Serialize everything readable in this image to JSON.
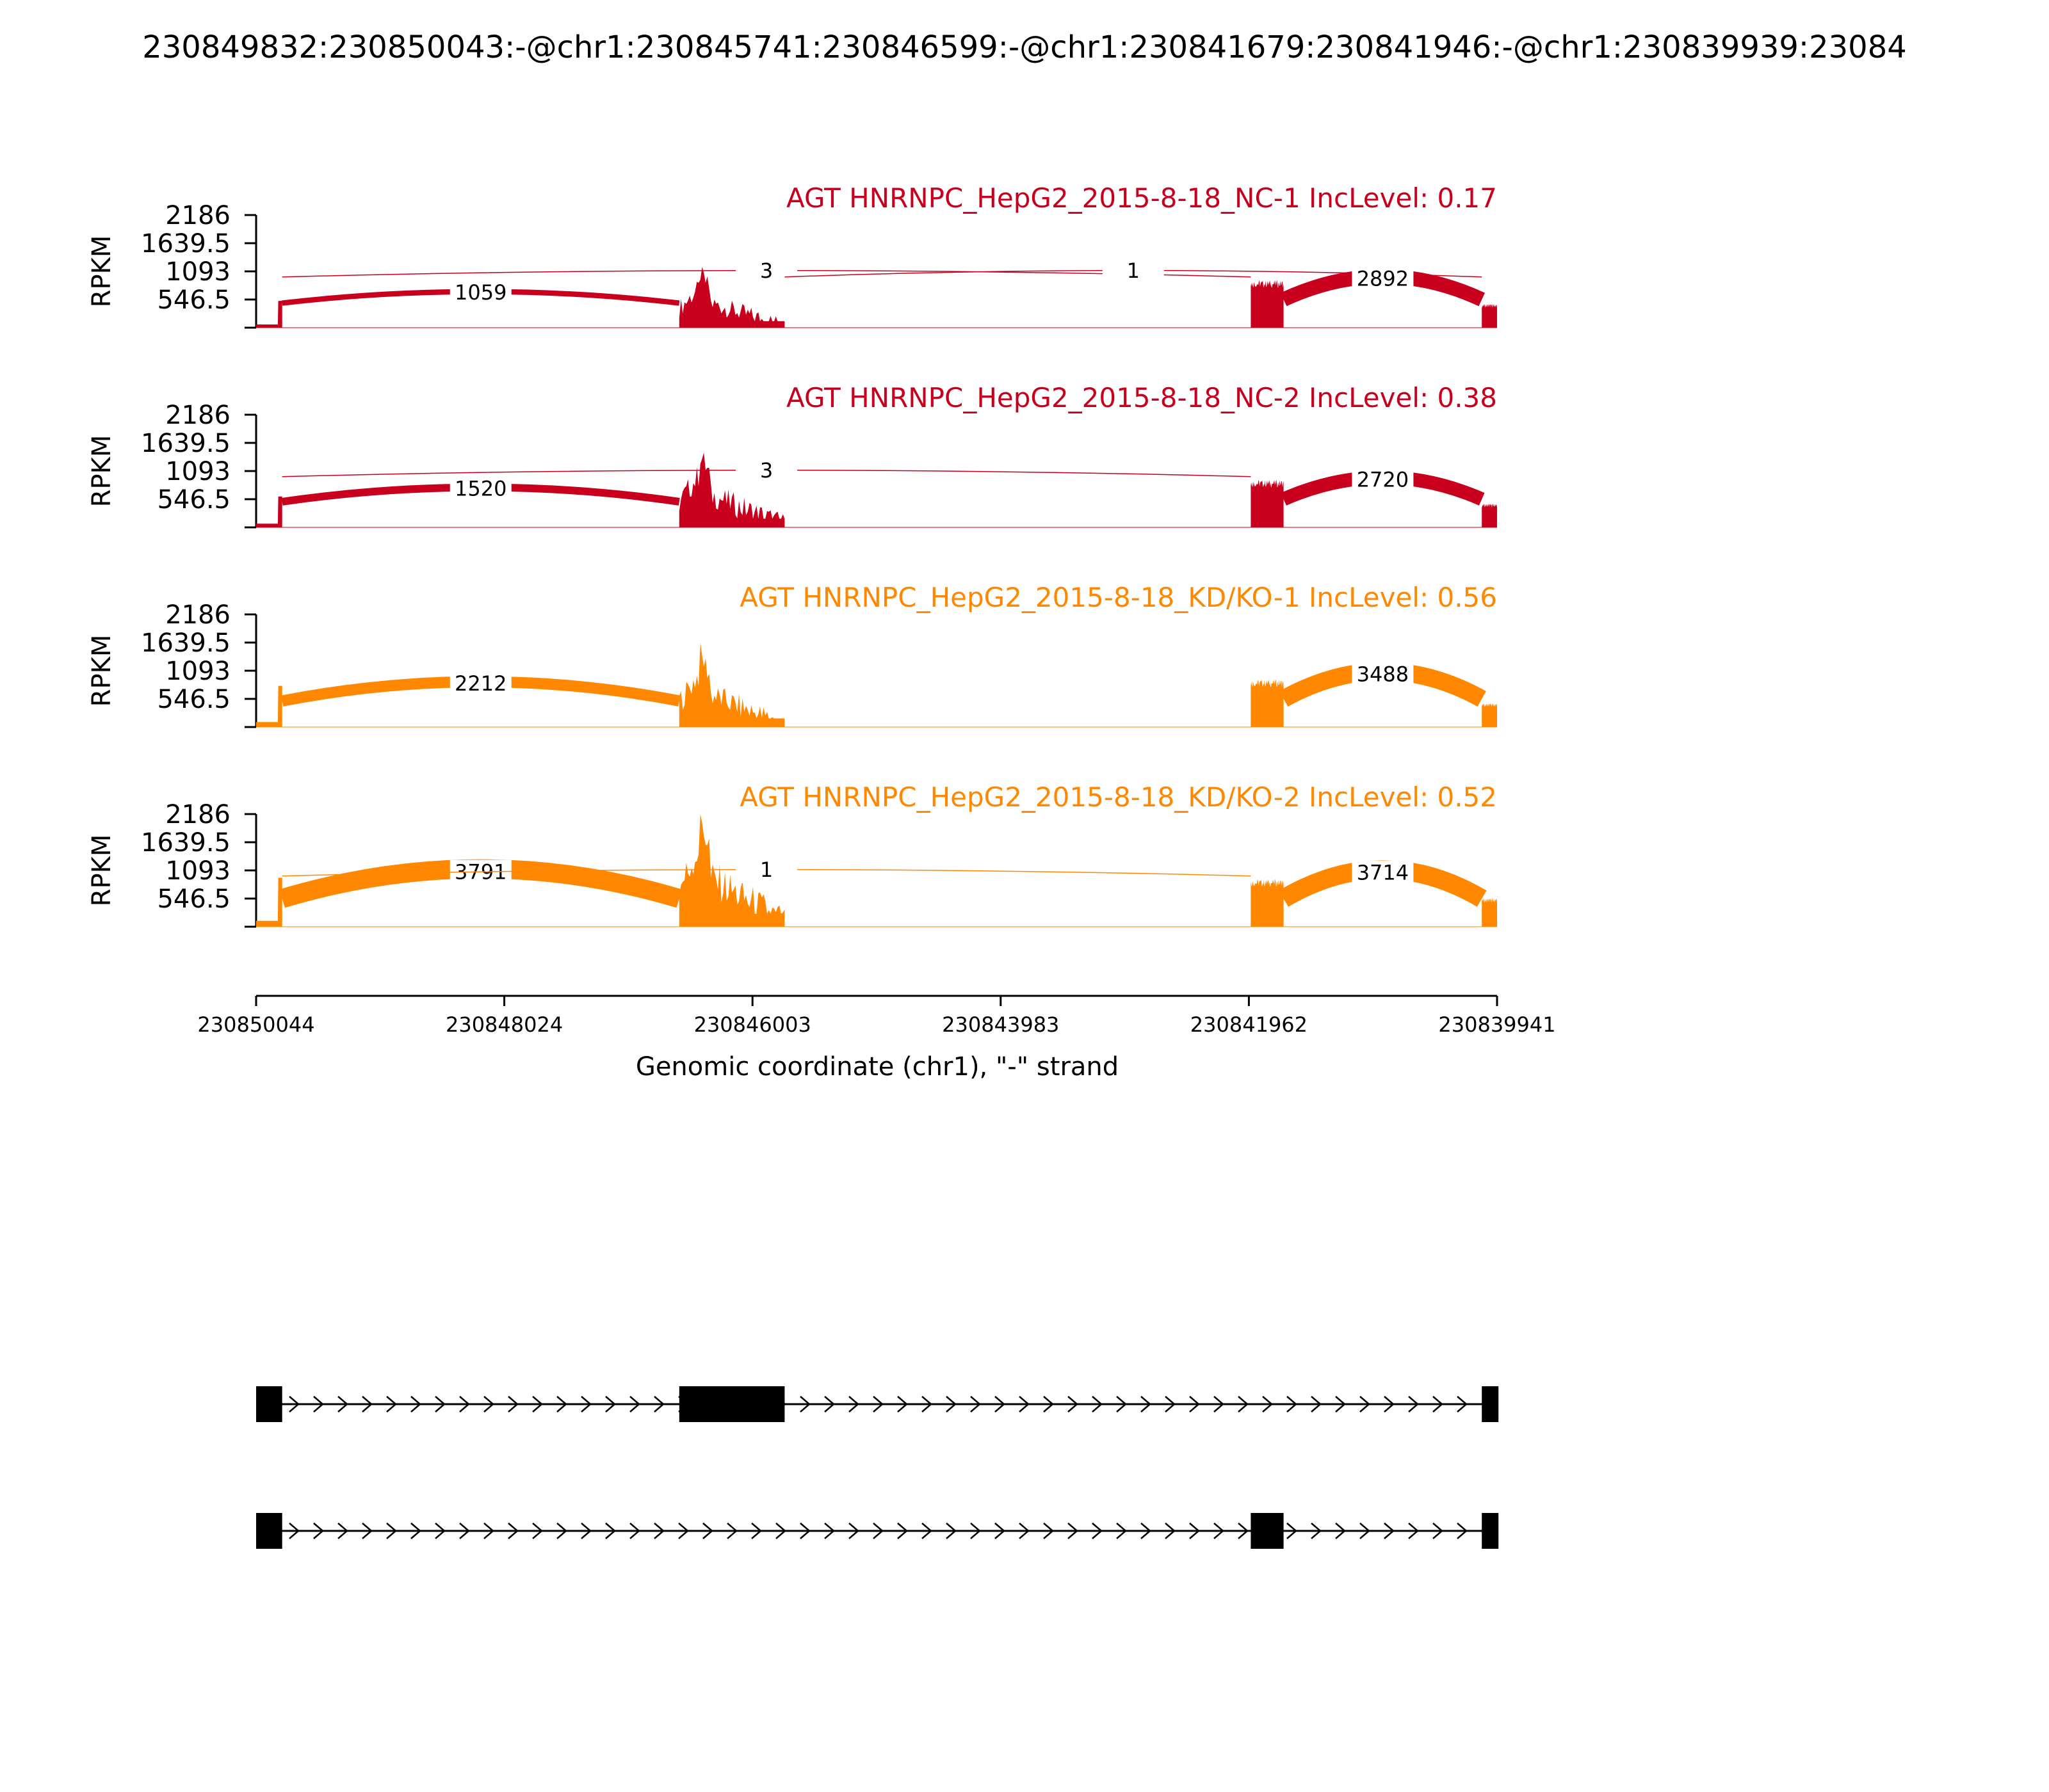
{
  "chart_data": {
    "type": "area",
    "title": "230849832:230850043:-@chr1:230845741:230846599:-@chr1:230841679:230841946:-@chr1:230839939:23084",
    "xlabel": "Genomic coordinate (chr1), \"-\" strand",
    "ylabel": "RPKM",
    "xlim": [
      230850044,
      230839941
    ],
    "x_ticks": [
      "230850044",
      "230848024",
      "230846003",
      "230843983",
      "230841962",
      "230839941"
    ],
    "ylim": [
      0,
      2186
    ],
    "y_ticks": [
      "2186",
      "1639.5",
      "1093",
      "546.5"
    ],
    "exons": [
      [
        230850044,
        230849832
      ],
      [
        230846599,
        230845741
      ],
      [
        230841946,
        230841679
      ],
      [
        230840065,
        230839941
      ]
    ],
    "series": [
      {
        "name": "AGT HNRNPC_HepG2_2015-8-18_NC-1 IncLevel: 0.17",
        "color": "#C8001E",
        "exon_levels": [
          {
            "exon": 0,
            "rpkm": 520
          },
          {
            "exon": 1,
            "rpkm": 1050
          },
          {
            "exon": 2,
            "rpkm": 1000
          },
          {
            "exon": 3,
            "rpkm": 500
          }
        ],
        "junctions": [
          {
            "label": "1059",
            "from": 230849832,
            "to": 230846599,
            "count": 1059
          },
          {
            "label": "3",
            "from": 230849832,
            "to": 230841946,
            "count": 3
          },
          {
            "label": "1",
            "from": 230845741,
            "to": 230840065,
            "count": 1
          },
          {
            "label": "2892",
            "from": 230841679,
            "to": 230840065,
            "count": 2892
          }
        ]
      },
      {
        "name": "AGT HNRNPC_HepG2_2015-8-18_NC-2 IncLevel: 0.38",
        "color": "#C8001E",
        "exon_levels": [
          {
            "exon": 0,
            "rpkm": 600
          },
          {
            "exon": 1,
            "rpkm": 1400
          },
          {
            "exon": 2,
            "rpkm": 1000
          },
          {
            "exon": 3,
            "rpkm": 500
          }
        ],
        "junctions": [
          {
            "label": "1520",
            "from": 230849832,
            "to": 230846599,
            "count": 1520
          },
          {
            "label": "3",
            "from": 230849832,
            "to": 230841946,
            "count": 3
          },
          {
            "label": "2720",
            "from": 230841679,
            "to": 230840065,
            "count": 2720
          }
        ]
      },
      {
        "name": "AGT HNRNPC_HepG2_2015-8-18_KD/KO-1 IncLevel: 0.56",
        "color": "#FF8800",
        "exon_levels": [
          {
            "exon": 0,
            "rpkm": 800
          },
          {
            "exon": 1,
            "rpkm": 1400
          },
          {
            "exon": 2,
            "rpkm": 1000
          },
          {
            "exon": 3,
            "rpkm": 500
          }
        ],
        "junctions": [
          {
            "label": "2212",
            "from": 230849832,
            "to": 230846599,
            "count": 2212
          },
          {
            "label": "3488",
            "from": 230841679,
            "to": 230840065,
            "count": 3488
          }
        ]
      },
      {
        "name": "AGT HNRNPC_HepG2_2015-8-18_KD/KO-2 IncLevel: 0.52",
        "color": "#FF8800",
        "exon_levels": [
          {
            "exon": 0,
            "rpkm": 950
          },
          {
            "exon": 1,
            "rpkm": 2100
          },
          {
            "exon": 2,
            "rpkm": 1000
          },
          {
            "exon": 3,
            "rpkm": 600
          }
        ],
        "junctions": [
          {
            "label": "3791",
            "from": 230849832,
            "to": 230846599,
            "count": 3791
          },
          {
            "label": "1",
            "from": 230849832,
            "to": 230841946,
            "count": 1
          },
          {
            "label": "3714",
            "from": 230841679,
            "to": 230840065,
            "count": 3714
          }
        ]
      }
    ],
    "isoforms": [
      {
        "exons": [
          0,
          1,
          3
        ]
      },
      {
        "exons": [
          0,
          2,
          3
        ]
      }
    ]
  }
}
